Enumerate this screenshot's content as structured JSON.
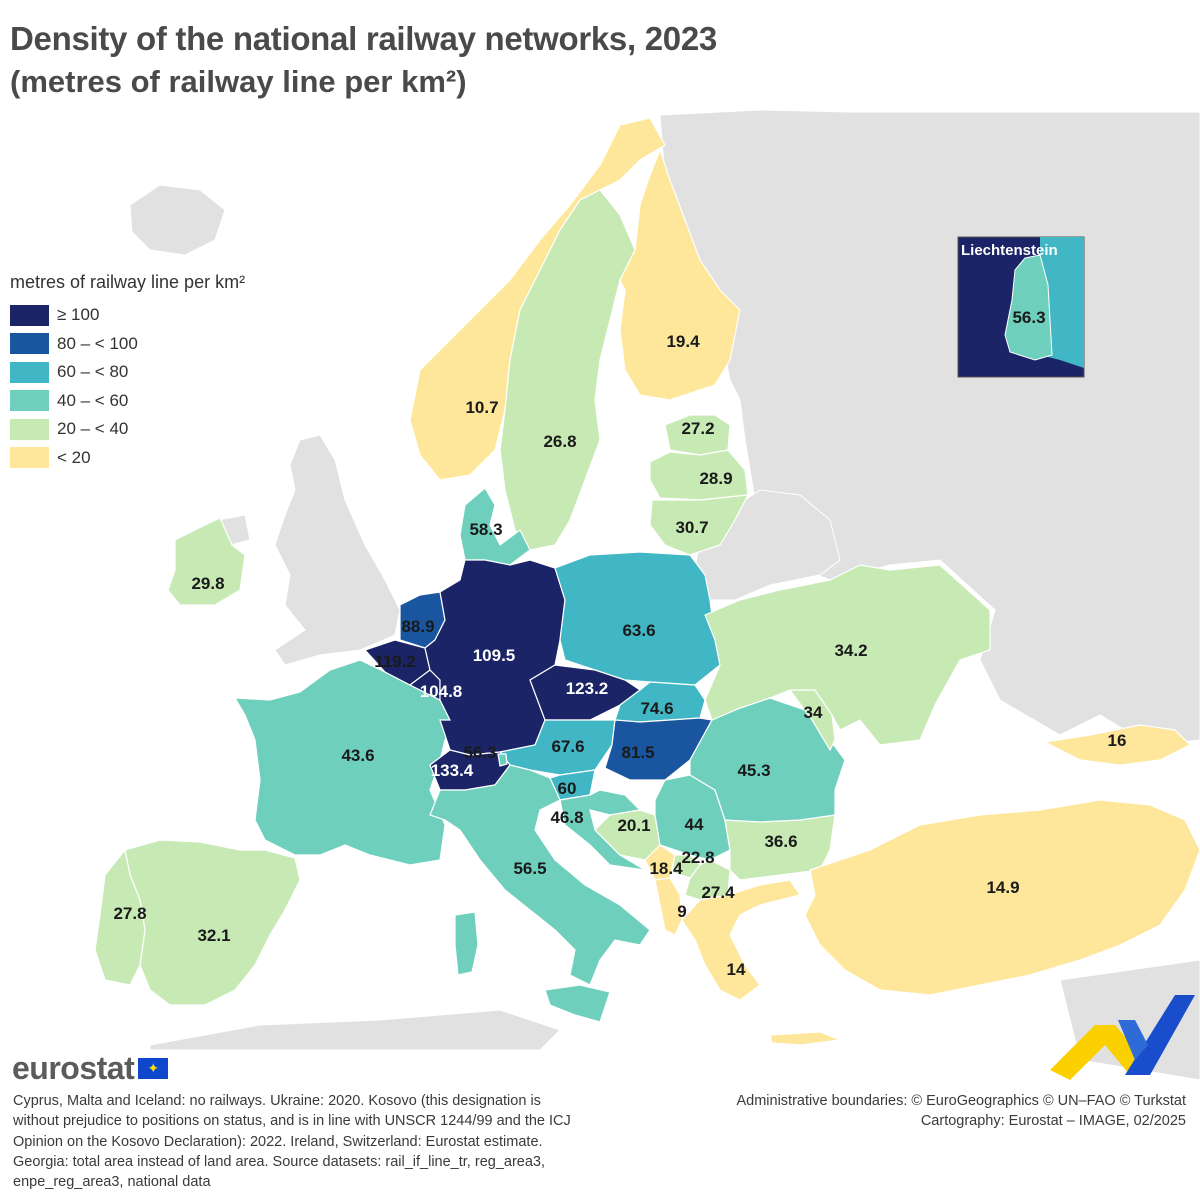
{
  "title": "Density of the national railway networks, 2023",
  "subtitle": "(metres of railway line per km²)",
  "legend": {
    "title": "metres of railway line per km²",
    "classes": [
      {
        "label": "≥ 100",
        "color": "#1a2466"
      },
      {
        "label": "80 – < 100",
        "color": "#1a56a0"
      },
      {
        "label": "60 – < 80",
        "color": "#41b6c4"
      },
      {
        "label": "40 – < 60",
        "color": "#6fcfbd"
      },
      {
        "label": "20 – < 40",
        "color": "#c7e9b4"
      },
      {
        "label": "< 20",
        "color": "#fee79b"
      }
    ]
  },
  "colors": {
    "background_land": "#e1e1e1",
    "sea": "#ffffff",
    "border": "#ffffff"
  },
  "countries": [
    {
      "name": "Norway",
      "value": "10.7"
    },
    {
      "name": "Sweden",
      "value": "26.8"
    },
    {
      "name": "Finland",
      "value": "19.4"
    },
    {
      "name": "Estonia",
      "value": "27.2"
    },
    {
      "name": "Latvia",
      "value": "28.9"
    },
    {
      "name": "Lithuania",
      "value": "30.7"
    },
    {
      "name": "Denmark",
      "value": "58.3"
    },
    {
      "name": "Ireland",
      "value": "29.8"
    },
    {
      "name": "Netherlands",
      "value": "88.9"
    },
    {
      "name": "Belgium",
      "value": "119.2"
    },
    {
      "name": "Luxembourg",
      "value": "104.8"
    },
    {
      "name": "Germany",
      "value": "109.5"
    },
    {
      "name": "Poland",
      "value": "63.6"
    },
    {
      "name": "Czechia",
      "value": "123.2"
    },
    {
      "name": "Slovakia",
      "value": "74.6"
    },
    {
      "name": "Austria",
      "value": "67.6"
    },
    {
      "name": "Hungary",
      "value": "81.5"
    },
    {
      "name": "Switzerland",
      "value": "133.4"
    },
    {
      "name": "Liechtenstein",
      "value": "56.3"
    },
    {
      "name": "France",
      "value": "43.6"
    },
    {
      "name": "Slovenia",
      "value": "60"
    },
    {
      "name": "Croatia",
      "value": "46.8"
    },
    {
      "name": "Italy",
      "value": "56.5"
    },
    {
      "name": "Spain",
      "value": "32.1"
    },
    {
      "name": "Portugal",
      "value": "27.8"
    },
    {
      "name": "Ukraine",
      "value": "34.2"
    },
    {
      "name": "Moldova",
      "value": "34"
    },
    {
      "name": "Romania",
      "value": "45.3"
    },
    {
      "name": "Serbia",
      "value": "44"
    },
    {
      "name": "Bosnia and Herzegovina",
      "value": "20.1"
    },
    {
      "name": "Montenegro",
      "value": "18.4"
    },
    {
      "name": "Kosovo",
      "value": "22.8"
    },
    {
      "name": "North Macedonia",
      "value": "27.4"
    },
    {
      "name": "Albania",
      "value": "9"
    },
    {
      "name": "Bulgaria",
      "value": "36.6"
    },
    {
      "name": "Greece",
      "value": "14"
    },
    {
      "name": "Türkiye",
      "value": "14.9"
    },
    {
      "name": "Georgia",
      "value": "16"
    }
  ],
  "inset": {
    "title": "Liechtenstein",
    "value": "56.3"
  },
  "footer": {
    "brand": "eurostat",
    "note": "Cyprus, Malta and Iceland: no railways. Ukraine: 2020. Kosovo (this designation is without prejudice to positions on status, and is in line with UNSCR 1244/99 and the ICJ Opinion on the Kosovo Declaration): 2022. Ireland, Switzerland: Eurostat estimate. Georgia: total area instead of land area. Source datasets: rail_if_line_tr, reg_area3, enpe_reg_area3, national data",
    "credits_line1": "Administrative boundaries: © EuroGeographics © UN–FAO © Turkstat",
    "credits_line2": "Cartography: Eurostat – IMAGE, 02/2025"
  }
}
